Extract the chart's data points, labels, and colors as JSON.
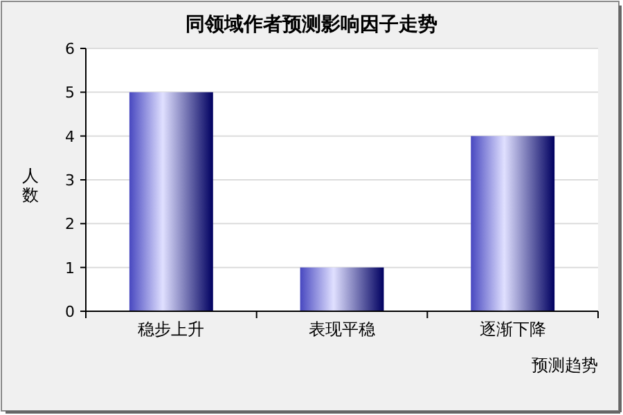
{
  "chart_data": {
    "type": "bar",
    "title": "同领域作者预测影响因子走势",
    "xlabel": "预测趋势",
    "ylabel": "人数",
    "categories": [
      "稳步上升",
      "表现平稳",
      "逐渐下降"
    ],
    "values": [
      5,
      1,
      4
    ],
    "color": "#4848c0",
    "ylim": [
      0,
      6
    ],
    "yticks": [
      0,
      1,
      2,
      3,
      4,
      5,
      6
    ],
    "grid": "y"
  }
}
